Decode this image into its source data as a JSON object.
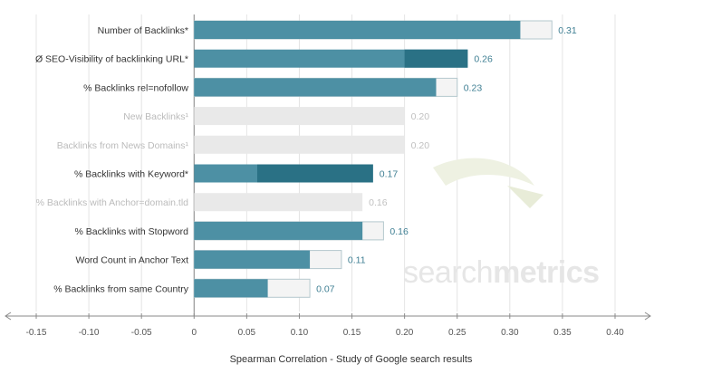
{
  "chart_data": {
    "type": "bar",
    "orientation": "horizontal",
    "xlabel": "Spearman Correlation - Study of Google search results",
    "xlim": [
      -0.15,
      0.4
    ],
    "x_ticks": [
      "-0.15",
      "-0.10",
      "-0.05",
      "0",
      "0.05",
      "0.10",
      "0.15",
      "0.20",
      "0.25",
      "0.30",
      "0.35",
      "0.40"
    ],
    "grid": true,
    "watermark": {
      "light": "search",
      "bold": "metrics"
    },
    "colors": {
      "bar": "#4d90a4",
      "bar_dark": "#2a7185",
      "bar_muted": "#e9e9e9",
      "bar_outline": "#ffffff",
      "label": "#333333",
      "label_muted": "#bbbbbb",
      "value": "#3f7f93",
      "value_muted": "#c0c0c0",
      "grid": "#e4e4e4",
      "axis": "#8a8a8a"
    },
    "bars": [
      {
        "label": "Number of Backlinks*",
        "value": 0.31,
        "value_label": "0.31",
        "outline_end": 0.34,
        "style": "normal"
      },
      {
        "label": "Ø SEO-Visibility of backlinking URL*",
        "value": 0.26,
        "value_label": "0.26",
        "dark_from": 0.2,
        "style": "normal"
      },
      {
        "label": "% Backlinks rel=nofollow",
        "value": 0.23,
        "value_label": "0.23",
        "outline_end": 0.25,
        "style": "normal"
      },
      {
        "label": "New Backlinks¹",
        "value": 0.2,
        "value_label": "0.20",
        "style": "muted"
      },
      {
        "label": "Backlinks from News Domains¹",
        "value": 0.2,
        "value_label": "0.20",
        "style": "muted"
      },
      {
        "label": "% Backlinks with Keyword*",
        "value": 0.17,
        "value_label": "0.17",
        "dark_from": 0.06,
        "style": "normal"
      },
      {
        "label": "% Backlinks with Anchor=domain.tld",
        "value": 0.16,
        "value_label": "0.16",
        "style": "muted"
      },
      {
        "label": "% Backlinks with Stopword",
        "value": 0.16,
        "value_label": "0.16",
        "outline_end": 0.18,
        "style": "normal"
      },
      {
        "label": "Word Count in Anchor Text",
        "value": 0.11,
        "value_label": "0.11",
        "outline_end": 0.14,
        "style": "normal"
      },
      {
        "label": "% Backlinks from same Country",
        "value": 0.07,
        "value_label": "0.07",
        "outline_end": 0.11,
        "style": "normal"
      }
    ]
  }
}
